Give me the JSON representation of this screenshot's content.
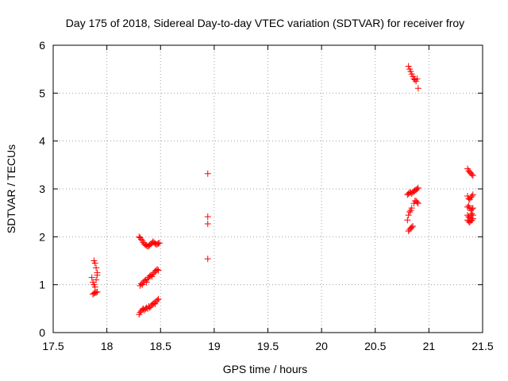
{
  "chart_data": {
    "type": "scatter",
    "title": "Day 175 of 2018, Sidereal Day-to-day VTEC variation (SDTVAR) for receiver froy",
    "xlabel": "GPS time / hours",
    "ylabel": "SDTVAR / TECUs",
    "xlim": [
      17.5,
      21.5
    ],
    "ylim": [
      0,
      6
    ],
    "xticks": [
      "17.5",
      "18",
      "18.5",
      "19",
      "19.5",
      "20",
      "20.5",
      "21",
      "21.5"
    ],
    "yticks": [
      "0",
      "1",
      "2",
      "3",
      "4",
      "5",
      "6"
    ],
    "grid": true,
    "marker": "plus",
    "color": "#ff0000",
    "points": [
      [
        17.87,
        0.8
      ],
      [
        17.88,
        0.82
      ],
      [
        17.89,
        0.83
      ],
      [
        17.9,
        0.84
      ],
      [
        17.91,
        0.85
      ],
      [
        17.86,
        1.15
      ],
      [
        17.87,
        1.05
      ],
      [
        17.88,
        1.0
      ],
      [
        17.89,
        0.95
      ],
      [
        17.9,
        1.1
      ],
      [
        17.91,
        1.2
      ],
      [
        17.88,
        1.5
      ],
      [
        17.89,
        1.45
      ],
      [
        17.9,
        1.35
      ],
      [
        17.91,
        1.25
      ],
      [
        18.3,
        0.38
      ],
      [
        18.31,
        0.42
      ],
      [
        18.32,
        0.45
      ],
      [
        18.33,
        0.48
      ],
      [
        18.34,
        0.5
      ],
      [
        18.35,
        0.47
      ],
      [
        18.36,
        0.5
      ],
      [
        18.37,
        0.52
      ],
      [
        18.38,
        0.5
      ],
      [
        18.39,
        0.55
      ],
      [
        18.4,
        0.52
      ],
      [
        18.41,
        0.55
      ],
      [
        18.42,
        0.58
      ],
      [
        18.43,
        0.6
      ],
      [
        18.44,
        0.62
      ],
      [
        18.45,
        0.6
      ],
      [
        18.46,
        0.65
      ],
      [
        18.47,
        0.68
      ],
      [
        18.48,
        0.7
      ],
      [
        18.31,
        0.98
      ],
      [
        18.32,
        1.02
      ],
      [
        18.33,
        1.0
      ],
      [
        18.34,
        1.05
      ],
      [
        18.35,
        1.08
      ],
      [
        18.36,
        1.1
      ],
      [
        18.37,
        1.05
      ],
      [
        18.38,
        1.12
      ],
      [
        18.39,
        1.15
      ],
      [
        18.4,
        1.18
      ],
      [
        18.41,
        1.2
      ],
      [
        18.42,
        1.17
      ],
      [
        18.43,
        1.22
      ],
      [
        18.44,
        1.25
      ],
      [
        18.45,
        1.28
      ],
      [
        18.46,
        1.3
      ],
      [
        18.47,
        1.32
      ],
      [
        18.48,
        1.3
      ],
      [
        18.3,
        2.0
      ],
      [
        18.31,
        1.98
      ],
      [
        18.32,
        1.95
      ],
      [
        18.33,
        1.92
      ],
      [
        18.34,
        1.88
      ],
      [
        18.35,
        1.85
      ],
      [
        18.36,
        1.83
      ],
      [
        18.37,
        1.82
      ],
      [
        18.38,
        1.8
      ],
      [
        18.39,
        1.81
      ],
      [
        18.4,
        1.83
      ],
      [
        18.41,
        1.85
      ],
      [
        18.42,
        1.87
      ],
      [
        18.43,
        1.9
      ],
      [
        18.44,
        1.88
      ],
      [
        18.45,
        1.86
      ],
      [
        18.46,
        1.84
      ],
      [
        18.47,
        1.85
      ],
      [
        18.48,
        1.86
      ],
      [
        18.49,
        1.87
      ],
      [
        18.94,
        3.32
      ],
      [
        18.94,
        2.42
      ],
      [
        18.94,
        2.27
      ],
      [
        18.94,
        1.54
      ],
      [
        20.81,
        5.56
      ],
      [
        20.82,
        5.5
      ],
      [
        20.83,
        5.45
      ],
      [
        20.84,
        5.4
      ],
      [
        20.85,
        5.35
      ],
      [
        20.86,
        5.3
      ],
      [
        20.87,
        5.28
      ],
      [
        20.88,
        5.25
      ],
      [
        20.89,
        5.3
      ],
      [
        20.9,
        5.1
      ],
      [
        20.8,
        2.88
      ],
      [
        20.81,
        2.9
      ],
      [
        20.82,
        2.92
      ],
      [
        20.83,
        2.93
      ],
      [
        20.84,
        2.9
      ],
      [
        20.85,
        2.93
      ],
      [
        20.86,
        2.95
      ],
      [
        20.87,
        2.97
      ],
      [
        20.88,
        2.98
      ],
      [
        20.89,
        3.0
      ],
      [
        20.9,
        3.02
      ],
      [
        20.8,
        2.35
      ],
      [
        20.81,
        2.45
      ],
      [
        20.82,
        2.52
      ],
      [
        20.83,
        2.55
      ],
      [
        20.84,
        2.6
      ],
      [
        20.86,
        2.7
      ],
      [
        20.87,
        2.75
      ],
      [
        20.88,
        2.75
      ],
      [
        20.89,
        2.72
      ],
      [
        20.9,
        2.7
      ],
      [
        20.81,
        2.12
      ],
      [
        20.82,
        2.15
      ],
      [
        20.83,
        2.18
      ],
      [
        20.84,
        2.2
      ],
      [
        20.85,
        2.22
      ],
      [
        21.36,
        3.42
      ],
      [
        21.37,
        3.38
      ],
      [
        21.38,
        3.35
      ],
      [
        21.39,
        3.33
      ],
      [
        21.4,
        3.3
      ],
      [
        21.41,
        3.28
      ],
      [
        21.36,
        2.85
      ],
      [
        21.37,
        2.8
      ],
      [
        21.38,
        2.78
      ],
      [
        21.39,
        2.82
      ],
      [
        21.4,
        2.85
      ],
      [
        21.41,
        2.88
      ],
      [
        21.36,
        2.62
      ],
      [
        21.37,
        2.65
      ],
      [
        21.38,
        2.6
      ],
      [
        21.39,
        2.55
      ],
      [
        21.4,
        2.58
      ],
      [
        21.41,
        2.6
      ],
      [
        21.36,
        2.45
      ],
      [
        21.37,
        2.42
      ],
      [
        21.38,
        2.4
      ],
      [
        21.39,
        2.45
      ],
      [
        21.4,
        2.48
      ],
      [
        21.41,
        2.45
      ],
      [
        21.36,
        2.35
      ],
      [
        21.37,
        2.32
      ],
      [
        21.38,
        2.3
      ],
      [
        21.39,
        2.33
      ],
      [
        21.4,
        2.35
      ],
      [
        21.41,
        2.38
      ]
    ]
  }
}
